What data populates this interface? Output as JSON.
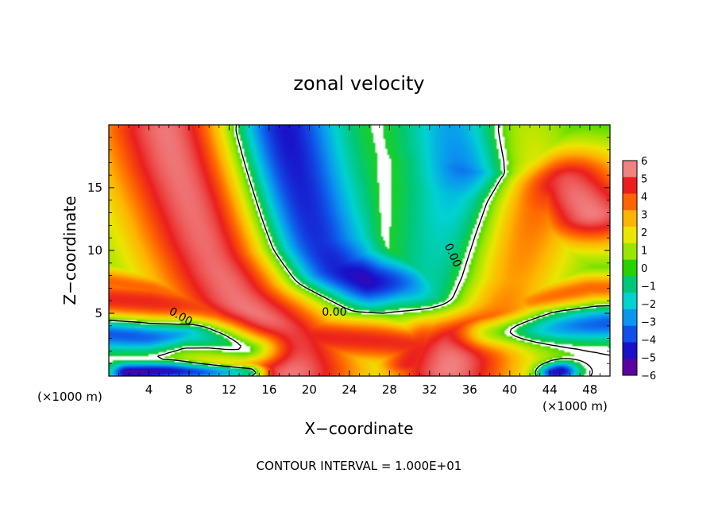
{
  "chart_data": {
    "type": "heatmap",
    "title": "zonal velocity",
    "xlabel": "X−coordinate",
    "ylabel": "Z−coordinate",
    "x_unit_left": "(×1000 m)",
    "x_unit_right": "(×1000 m)",
    "footer": "CONTOUR INTERVAL = 1.000E+01",
    "xlim": [
      0,
      50
    ],
    "ylim": [
      0,
      20
    ],
    "x_ticks": [
      4,
      8,
      12,
      16,
      20,
      24,
      28,
      32,
      36,
      40,
      44,
      48
    ],
    "y_ticks": [
      5,
      10,
      15
    ],
    "colorbar": {
      "min": -6,
      "max": 6,
      "ticks": [
        6,
        5,
        4,
        3,
        2,
        1,
        0,
        -1,
        -2,
        -3,
        -4,
        -5,
        -6
      ],
      "tick_labels": [
        "6",
        "5",
        "4",
        "3",
        "2",
        "1",
        "0",
        "−1",
        "−2",
        "−3",
        "−4",
        "−5",
        "−6"
      ],
      "colors": [
        "#5a00a0",
        "#1a10c8",
        "#1050e8",
        "#0a96f0",
        "#00d2d2",
        "#00c878",
        "#28d200",
        "#9be600",
        "#ebe600",
        "#ffb400",
        "#ff6400",
        "#eb1e1e",
        "#f08282"
      ]
    },
    "contour_labels": [
      {
        "text": "0.00",
        "x": 7.0,
        "y": 4.5,
        "angle": 30
      },
      {
        "text": "0.00",
        "x": 22.5,
        "y": 4.8,
        "angle": 0
      },
      {
        "text": "0.00",
        "x": 34.0,
        "y": 9.5,
        "angle": 65
      }
    ],
    "features": [
      {
        "name": "positive-jet-left",
        "peak": 6,
        "path": [
          [
            6,
            19.5
          ],
          [
            7,
            17
          ],
          [
            8.5,
            14
          ],
          [
            10,
            11
          ],
          [
            11.5,
            8.5
          ],
          [
            13,
            6.5
          ],
          [
            15,
            4.5
          ],
          [
            17,
            2.5
          ],
          [
            18,
            0.5
          ]
        ],
        "width": 4.0
      },
      {
        "name": "positive-layer-low",
        "peak": 5,
        "path": [
          [
            0,
            6
          ],
          [
            4,
            5.8
          ],
          [
            8,
            5.2
          ],
          [
            12,
            4.8
          ],
          [
            16,
            3.8
          ],
          [
            20,
            3.2
          ],
          [
            24,
            3.0
          ],
          [
            28,
            2.8
          ],
          [
            31,
            2.5
          ],
          [
            33,
            1.5
          ]
        ],
        "width": 2.5
      },
      {
        "name": "positive-layer-mid",
        "peak": 4,
        "path": [
          [
            0,
            7.5
          ],
          [
            4,
            7.0
          ],
          [
            8,
            6.0
          ],
          [
            12,
            5.5
          ],
          [
            16,
            5.0
          ],
          [
            20,
            4.5
          ]
        ],
        "width": 1.5
      },
      {
        "name": "positive-branch-right",
        "peak": 6,
        "path": [
          [
            34,
            0.5
          ],
          [
            35,
            3
          ],
          [
            36,
            5.5
          ],
          [
            37,
            8
          ],
          [
            38.5,
            11
          ],
          [
            40,
            13.5
          ],
          [
            42,
            15
          ],
          [
            45,
            15.5
          ],
          [
            48,
            13
          ]
        ],
        "width": 3.5
      },
      {
        "name": "positive-upper-right",
        "peak": 5,
        "path": [
          [
            39,
            19.5
          ],
          [
            40,
            17
          ],
          [
            42,
            15.5
          ],
          [
            45,
            14.5
          ]
        ],
        "width": 2.5
      },
      {
        "name": "positive-right-edge",
        "peak": 4,
        "path": [
          [
            42,
            6
          ],
          [
            45,
            6.5
          ],
          [
            48,
            7
          ],
          [
            50,
            7
          ]
        ],
        "width": 1.5
      },
      {
        "name": "positive-surface-32",
        "peak": 5,
        "path": [
          [
            30,
            1
          ],
          [
            31,
            2.5
          ],
          [
            32,
            4
          ],
          [
            33,
            5
          ]
        ],
        "width": 1.8
      },
      {
        "name": "negative-shear-band",
        "peak": -6,
        "path": [
          [
            17,
            19.5
          ],
          [
            18,
            16
          ],
          [
            19,
            13
          ],
          [
            20,
            10.5
          ],
          [
            22,
            8.5
          ],
          [
            26,
            7.5
          ],
          [
            30,
            7.3
          ],
          [
            33,
            6.5
          ],
          [
            34,
            8
          ],
          [
            35,
            11
          ],
          [
            36,
            14
          ],
          [
            37,
            17
          ],
          [
            36.5,
            19.5
          ]
        ],
        "width": 2.6
      },
      {
        "name": "negative-layer-left",
        "peak": -5,
        "path": [
          [
            0,
            3.5
          ],
          [
            4,
            3.3
          ],
          [
            8,
            3.5
          ],
          [
            11,
            3.0
          ],
          [
            14,
            2.2
          ]
        ],
        "width": 1.5
      },
      {
        "name": "negative-surface-left",
        "peak": -6,
        "path": [
          [
            2,
            0.3
          ],
          [
            6,
            0.4
          ],
          [
            10,
            0.3
          ],
          [
            14,
            0.3
          ]
        ],
        "width": 0.8
      },
      {
        "name": "negative-layer-right",
        "peak": -4,
        "path": [
          [
            38,
            3.5
          ],
          [
            42,
            3.7
          ],
          [
            46,
            4.0
          ],
          [
            50,
            4.2
          ]
        ],
        "width": 1.5
      },
      {
        "name": "negative-cell-44",
        "peak": -6,
        "path": [
          [
            44.5,
            0.3
          ],
          [
            45,
            0.4
          ]
        ],
        "width": 0.8
      }
    ]
  }
}
